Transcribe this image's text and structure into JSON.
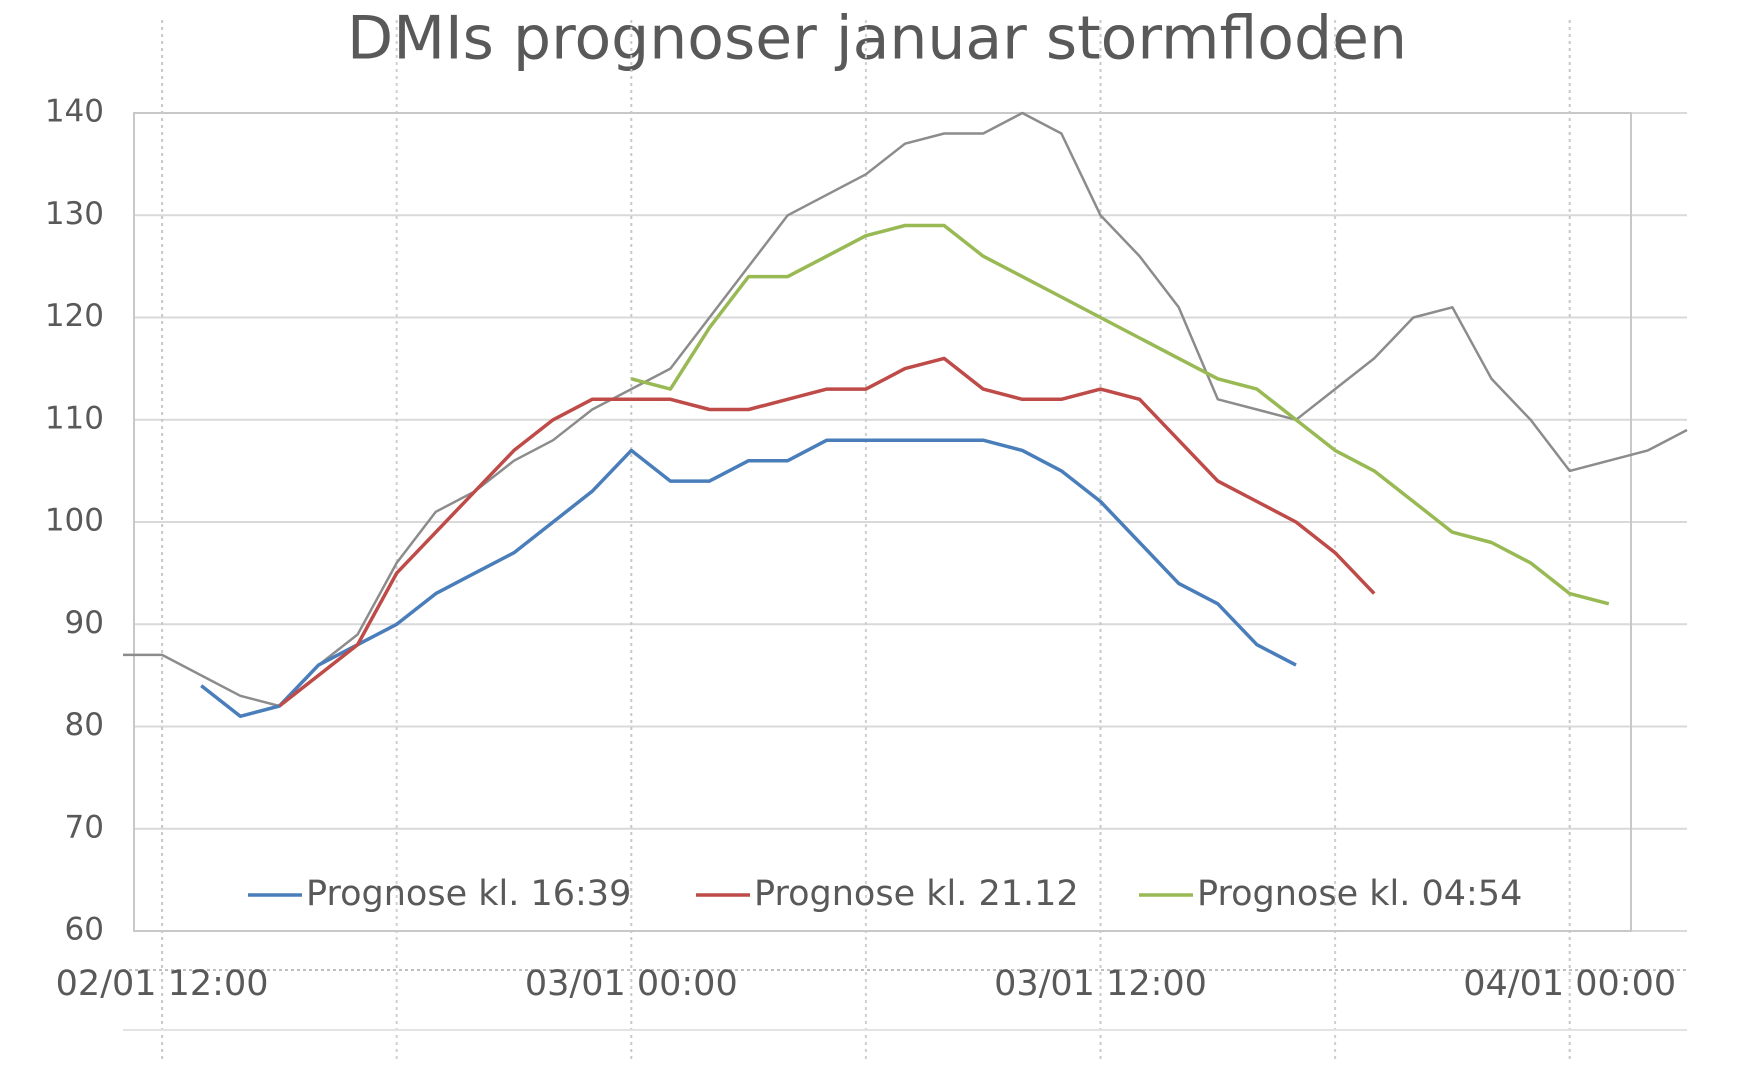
{
  "chart_data": {
    "type": "line",
    "title": "DMIs prognoser januar stormfloden",
    "x": [
      "02/01 11:00",
      "02/01 12:00",
      "02/01 13:00",
      "02/01 14:00",
      "02/01 15:00",
      "02/01 16:00",
      "02/01 17:00",
      "02/01 18:00",
      "02/01 19:00",
      "02/01 20:00",
      "02/01 21:00",
      "02/01 22:00",
      "02/01 23:00",
      "03/01 00:00",
      "03/01 01:00",
      "03/01 02:00",
      "03/01 03:00",
      "03/01 04:00",
      "03/01 05:00",
      "03/01 06:00",
      "03/01 07:00",
      "03/01 08:00",
      "03/01 09:00",
      "03/01 10:00",
      "03/01 11:00",
      "03/01 12:00",
      "03/01 13:00",
      "03/01 14:00",
      "03/01 15:00",
      "03/01 16:00",
      "03/01 17:00",
      "03/01 18:00",
      "03/01 19:00",
      "03/01 20:00",
      "03/01 21:00",
      "03/01 22:00",
      "03/01 23:00",
      "04/01 00:00",
      "04/01 01:00",
      "04/01 02:00",
      "04/01 03:00"
    ],
    "series": [
      {
        "color": "#8c8c8c",
        "values": [
          87,
          87,
          85,
          83,
          82,
          86,
          89,
          96,
          101,
          103,
          106,
          108,
          111,
          113,
          115,
          120,
          125,
          130,
          132,
          134,
          137,
          138,
          138,
          140,
          138,
          130,
          126,
          121,
          112,
          111,
          110,
          113,
          116,
          120,
          121,
          114,
          110,
          105,
          106,
          107,
          109
        ]
      },
      {
        "name": "Prognose kl. 16:39",
        "color": "#4a7ebb",
        "values": [
          null,
          null,
          84,
          81,
          82,
          86,
          88,
          90,
          93,
          95,
          97,
          100,
          103,
          107,
          104,
          104,
          106,
          106,
          108,
          108,
          108,
          108,
          108,
          107,
          105,
          102,
          98,
          94,
          92,
          88,
          86,
          null,
          null,
          null,
          null,
          null,
          null,
          null,
          null,
          null,
          null
        ]
      },
      {
        "name": "Prognose kl. 21.12",
        "color": "#be4b48",
        "values": [
          null,
          null,
          null,
          null,
          82,
          85,
          88,
          95,
          99,
          103,
          107,
          110,
          112,
          112,
          112,
          111,
          111,
          112,
          113,
          113,
          115,
          116,
          113,
          112,
          112,
          113,
          112,
          108,
          104,
          102,
          100,
          97,
          93,
          null,
          null,
          null,
          null,
          null,
          null,
          null,
          null
        ]
      },
      {
        "name": "Prognose kl. 04:54",
        "color": "#98b954",
        "values": [
          null,
          null,
          null,
          null,
          null,
          null,
          null,
          null,
          null,
          null,
          null,
          null,
          null,
          114,
          113,
          119,
          124,
          124,
          126,
          128,
          129,
          129,
          126,
          124,
          122,
          120,
          118,
          116,
          114,
          113,
          110,
          107,
          105,
          102,
          99,
          98,
          96,
          93,
          92,
          null,
          null
        ]
      }
    ],
    "xlim": [
      "02/01 11:00",
      "04/01 03:00"
    ],
    "xticks": [
      "02/01 12:00",
      "03/01 00:00",
      "03/01 12:00",
      "04/01 00:00"
    ],
    "xminorticks": [
      "02/01 18:00",
      "03/01 06:00",
      "03/01 18:00"
    ],
    "ylim": [
      60,
      140
    ],
    "yticks": [
      60,
      70,
      80,
      90,
      100,
      110,
      120,
      130,
      140
    ],
    "grid": true,
    "legend": "bottom"
  }
}
